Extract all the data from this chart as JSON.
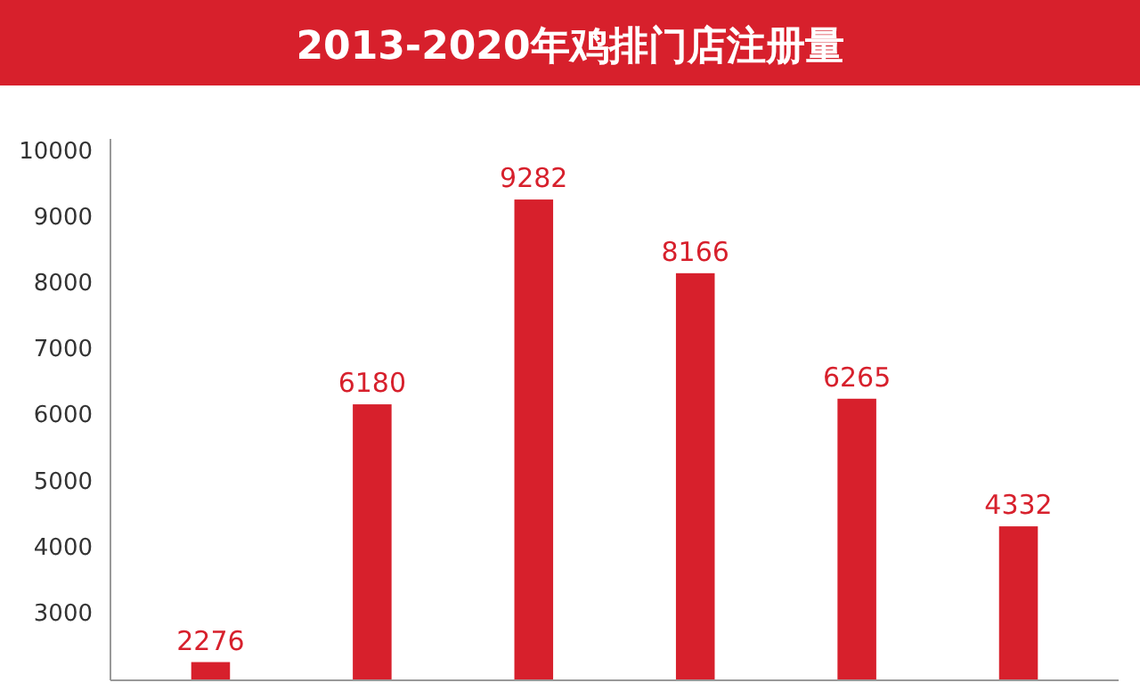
{
  "chart_data": {
    "type": "bar",
    "title": "2013-2020年鸡排门店注册量",
    "categories": [
      null,
      null,
      null,
      null,
      null,
      null
    ],
    "values": [
      2276,
      6180,
      9282,
      8166,
      6265,
      4332
    ],
    "color": "#d7202c",
    "data_labels": true,
    "ylim": [
      2000,
      10200
    ],
    "yticks": [
      3000,
      4000,
      5000,
      6000,
      7000,
      8000,
      9000,
      10000
    ],
    "grid": false
  }
}
